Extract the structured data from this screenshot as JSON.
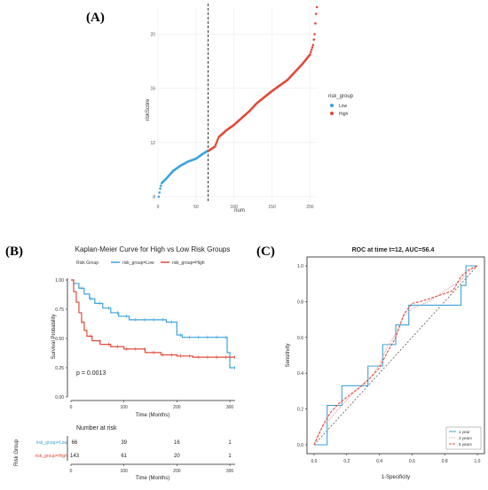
{
  "panel_labels": {
    "a": "(A)",
    "b": "(B)",
    "c": "(C)"
  },
  "colors": {
    "low": "#3ba3dc",
    "high": "#e04b3a",
    "grid": "#ececec",
    "diag": "#555555",
    "roc_1yr": "#3ba3dc",
    "roc_3yr": "#ee9999",
    "roc_5yr": "#e04b3a"
  },
  "chart_data": [
    {
      "id": "risk-score-distribution",
      "type": "scatter",
      "xlabel": "num",
      "ylabel": "riskScore",
      "xlim": [
        0,
        210
      ],
      "ylim": [
        7.6,
        22
      ],
      "x_ticks": [
        0,
        50,
        100,
        150,
        200
      ],
      "y_ticks": [
        8,
        12,
        16,
        20
      ],
      "cutoff_x": 66,
      "grid": true,
      "legend_title": "risk_group",
      "legend_position": "right",
      "series": [
        {
          "name": "Low",
          "color_key": "low",
          "x_range": [
            1,
            66
          ],
          "anchors": [
            [
              1,
              8.0
            ],
            [
              3,
              8.6
            ],
            [
              5,
              9.0
            ],
            [
              12,
              9.4
            ],
            [
              20,
              9.9
            ],
            [
              30,
              10.3
            ],
            [
              40,
              10.6
            ],
            [
              50,
              10.8
            ],
            [
              60,
              11.2
            ],
            [
              66,
              11.4
            ]
          ]
        },
        {
          "name": "High",
          "color_key": "high",
          "x_range": [
            67,
            209
          ],
          "anchors": [
            [
              67,
              11.4
            ],
            [
              75,
              11.7
            ],
            [
              80,
              12.4
            ],
            [
              90,
              12.9
            ],
            [
              100,
              13.3
            ],
            [
              110,
              13.8
            ],
            [
              120,
              14.3
            ],
            [
              130,
              14.9
            ],
            [
              150,
              15.8
            ],
            [
              170,
              16.6
            ],
            [
              190,
              17.8
            ],
            [
              200,
              18.5
            ],
            [
              204,
              19.2
            ],
            [
              206,
              20.0
            ],
            [
              207,
              20.8
            ],
            [
              208,
              21.5
            ],
            [
              209,
              22.0
            ]
          ]
        }
      ]
    },
    {
      "id": "kaplan-meier",
      "type": "line",
      "title": "Kaplan-Meier Curve for High vs Low Risk Groups",
      "xlabel": "Time (Months)",
      "ylabel": "Survival Probability",
      "xlim": [
        0,
        310
      ],
      "ylim": [
        0,
        1.0
      ],
      "x_ticks": [
        0,
        100,
        200,
        300
      ],
      "y_ticks": [
        0.0,
        0.25,
        0.5,
        0.75,
        1.0
      ],
      "legend_title": "Risk Group",
      "legend_position": "top",
      "pvalue_text": "p = 0.0013",
      "series": [
        {
          "name": "risk_group=Low",
          "color_key": "low",
          "steps": [
            [
              0,
              1.0
            ],
            [
              5,
              0.97
            ],
            [
              15,
              0.93
            ],
            [
              25,
              0.88
            ],
            [
              35,
              0.84
            ],
            [
              45,
              0.8
            ],
            [
              60,
              0.76
            ],
            [
              75,
              0.72
            ],
            [
              90,
              0.69
            ],
            [
              110,
              0.66
            ],
            [
              180,
              0.64
            ],
            [
              200,
              0.53
            ],
            [
              210,
              0.51
            ],
            [
              295,
              0.38
            ],
            [
              300,
              0.25
            ],
            [
              310,
              0.25
            ]
          ]
        },
        {
          "name": "risk_group=High",
          "color_key": "high",
          "steps": [
            [
              0,
              1.0
            ],
            [
              5,
              0.9
            ],
            [
              10,
              0.81
            ],
            [
              15,
              0.72
            ],
            [
              20,
              0.64
            ],
            [
              25,
              0.57
            ],
            [
              30,
              0.52
            ],
            [
              40,
              0.48
            ],
            [
              55,
              0.45
            ],
            [
              75,
              0.43
            ],
            [
              100,
              0.41
            ],
            [
              140,
              0.38
            ],
            [
              170,
              0.36
            ],
            [
              200,
              0.35
            ],
            [
              230,
              0.34
            ],
            [
              310,
              0.34
            ]
          ]
        }
      ]
    },
    {
      "id": "number-at-risk",
      "type": "table",
      "title": "Number at risk",
      "xlabel": "Time (Months)",
      "ylabel": "Risk Group",
      "time_points": [
        0,
        100,
        200,
        300
      ],
      "rows": [
        {
          "name": "risk_group=Low",
          "color_key": "low",
          "values": [
            66,
            39,
            16,
            1
          ]
        },
        {
          "name": "risk_group=High",
          "color_key": "high",
          "values": [
            143,
            61,
            20,
            1
          ]
        }
      ]
    },
    {
      "id": "roc",
      "type": "line",
      "title": "ROC at time t=12, AUC=56.4",
      "xlabel": "1-Specificity",
      "ylabel": "Sensitivity",
      "xlim": [
        0,
        1
      ],
      "ylim": [
        0,
        1
      ],
      "x_ticks": [
        0.0,
        0.2,
        0.4,
        0.6,
        0.8,
        1.0
      ],
      "y_ticks": [
        0.0,
        0.2,
        0.4,
        0.6,
        0.8,
        1.0
      ],
      "legend_position": "bottom-right",
      "series": [
        {
          "name": "1 year",
          "color_key": "roc_1yr",
          "dash": "solid",
          "points": [
            [
              0,
              0
            ],
            [
              0.08,
              0
            ],
            [
              0.08,
              0.11
            ],
            [
              0.08,
              0.22
            ],
            [
              0.17,
              0.22
            ],
            [
              0.17,
              0.33
            ],
            [
              0.33,
              0.33
            ],
            [
              0.33,
              0.44
            ],
            [
              0.42,
              0.44
            ],
            [
              0.42,
              0.56
            ],
            [
              0.5,
              0.56
            ],
            [
              0.5,
              0.67
            ],
            [
              0.58,
              0.67
            ],
            [
              0.58,
              0.78
            ],
            [
              0.9,
              0.78
            ],
            [
              0.9,
              0.89
            ],
            [
              0.93,
              0.89
            ],
            [
              0.93,
              1.0
            ],
            [
              1.0,
              1.0
            ]
          ]
        },
        {
          "name": "3 years",
          "color_key": "roc_3yr",
          "dash": "dotted",
          "points": [
            [
              0,
              0
            ],
            [
              0.02,
              0.05
            ],
            [
              0.05,
              0.1
            ],
            [
              0.1,
              0.15
            ],
            [
              0.15,
              0.2
            ],
            [
              0.2,
              0.25
            ],
            [
              0.25,
              0.3
            ],
            [
              0.3,
              0.34
            ],
            [
              0.35,
              0.38
            ],
            [
              0.4,
              0.45
            ],
            [
              0.45,
              0.55
            ],
            [
              0.5,
              0.62
            ],
            [
              0.55,
              0.72
            ],
            [
              0.6,
              0.76
            ],
            [
              0.7,
              0.8
            ],
            [
              0.8,
              0.86
            ],
            [
              0.9,
              0.92
            ],
            [
              0.95,
              0.97
            ],
            [
              1.0,
              1.0
            ]
          ]
        },
        {
          "name": "5 years",
          "color_key": "roc_5yr",
          "dash": "dashed",
          "points": [
            [
              0,
              0
            ],
            [
              0.03,
              0.06
            ],
            [
              0.06,
              0.12
            ],
            [
              0.1,
              0.18
            ],
            [
              0.15,
              0.23
            ],
            [
              0.22,
              0.28
            ],
            [
              0.28,
              0.32
            ],
            [
              0.34,
              0.37
            ],
            [
              0.4,
              0.43
            ],
            [
              0.45,
              0.52
            ],
            [
              0.5,
              0.6
            ],
            [
              0.55,
              0.73
            ],
            [
              0.6,
              0.79
            ],
            [
              0.65,
              0.8
            ],
            [
              0.75,
              0.83
            ],
            [
              0.85,
              0.86
            ],
            [
              0.9,
              0.94
            ],
            [
              0.95,
              0.98
            ],
            [
              1.0,
              1.0
            ]
          ]
        }
      ]
    }
  ]
}
